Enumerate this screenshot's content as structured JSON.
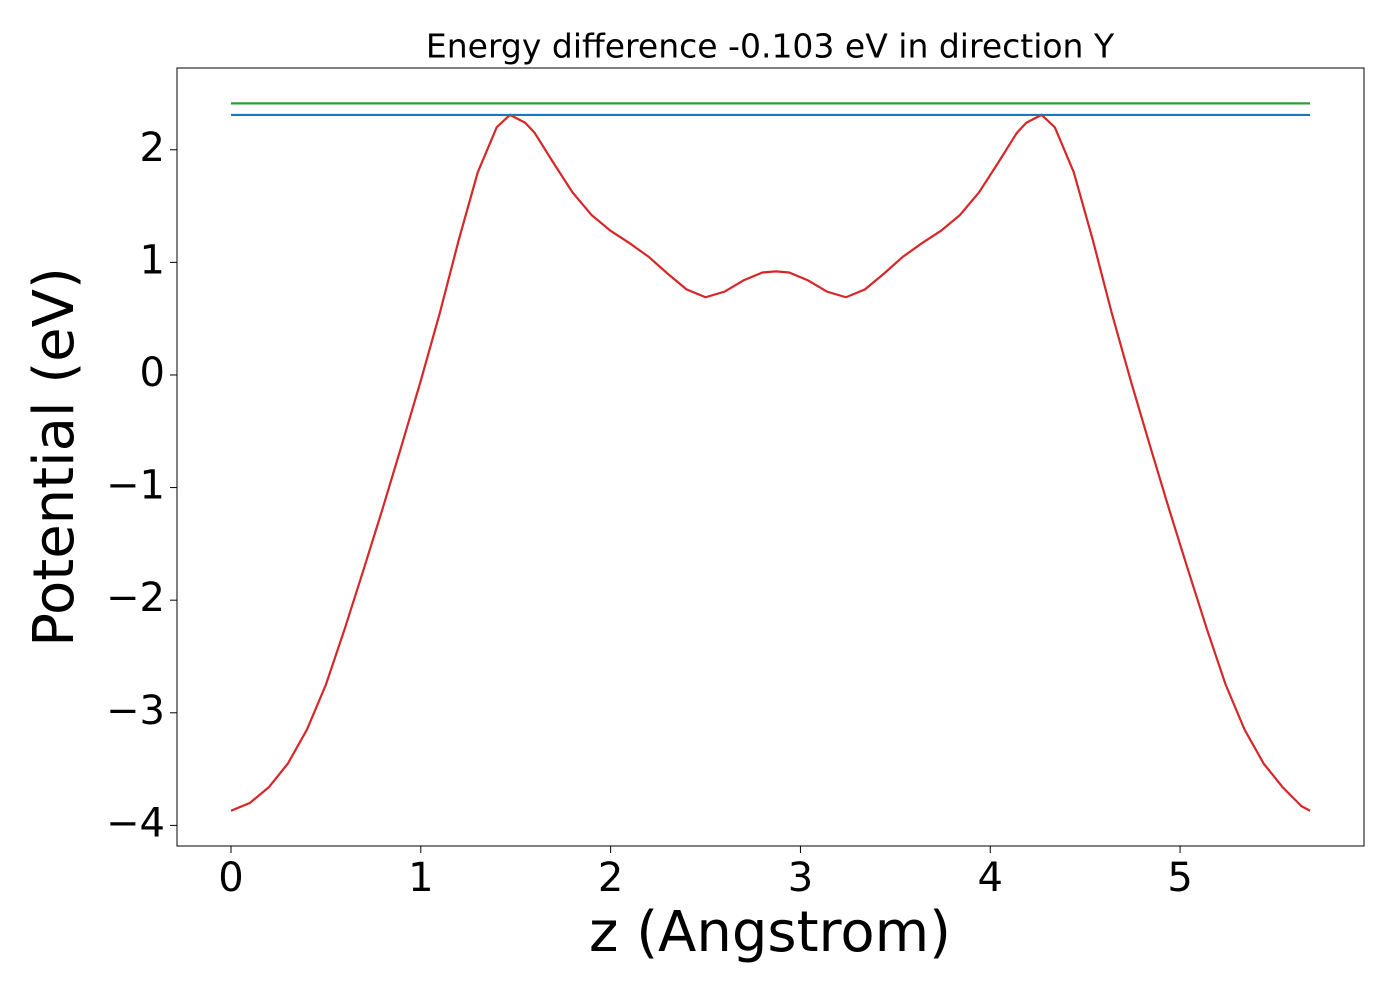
{
  "chart_data": {
    "type": "line",
    "title": "Energy difference -0.103 eV in direction Y",
    "xlabel": "z (Angstrom)",
    "ylabel": "Potential (eV)",
    "xlim": [
      -0.2845,
      5.969
    ],
    "ylim": [
      -4.183,
      2.726
    ],
    "xticks": [
      0,
      1,
      2,
      3,
      4,
      5
    ],
    "yticks": [
      {
        "value": -4,
        "label": "−4"
      },
      {
        "value": -3,
        "label": "−3"
      },
      {
        "value": -2,
        "label": "−2"
      },
      {
        "value": -1,
        "label": "−1"
      },
      0,
      1,
      2
    ],
    "grid": false,
    "series": [
      {
        "color": "#d62728",
        "x": [
          0,
          0.1,
          0.2,
          0.3,
          0.4,
          0.5,
          0.6,
          0.7,
          0.8,
          0.9,
          1.0,
          1.1,
          1.2,
          1.3,
          1.4,
          1.47,
          1.55,
          1.6,
          1.7,
          1.8,
          1.9,
          2.0,
          2.1,
          2.2,
          2.3,
          2.4,
          2.5,
          2.6,
          2.7,
          2.8,
          2.87,
          2.94,
          3.04,
          3.14,
          3.24,
          3.34,
          3.44,
          3.54,
          3.64,
          3.74,
          3.84,
          3.94,
          4.04,
          4.14,
          4.19,
          4.27,
          4.34,
          4.44,
          4.54,
          4.64,
          4.74,
          4.84,
          4.94,
          5.04,
          5.14,
          5.24,
          5.34,
          5.44,
          5.54,
          5.64,
          5.685
        ],
        "values": [
          -3.87,
          -3.8,
          -3.66,
          -3.45,
          -3.15,
          -2.75,
          -2.25,
          -1.72,
          -1.18,
          -0.62,
          -0.05,
          0.55,
          1.2,
          1.8,
          2.2,
          2.31,
          2.24,
          2.15,
          1.88,
          1.62,
          1.42,
          1.28,
          1.17,
          1.05,
          0.9,
          0.76,
          0.69,
          0.74,
          0.84,
          0.91,
          0.92,
          0.91,
          0.84,
          0.74,
          0.69,
          0.76,
          0.9,
          1.05,
          1.17,
          1.28,
          1.42,
          1.62,
          1.88,
          2.15,
          2.24,
          2.31,
          2.2,
          1.8,
          1.2,
          0.55,
          -0.05,
          -0.62,
          -1.18,
          -1.72,
          -2.25,
          -2.75,
          -3.15,
          -3.45,
          -3.66,
          -3.83,
          -3.87
        ]
      },
      {
        "color": "#2ca02c",
        "x": [
          0,
          5.685
        ],
        "values": [
          2.412,
          2.412
        ]
      },
      {
        "color": "#1f77b4",
        "x": [
          0,
          5.685
        ],
        "values": [
          2.309,
          2.309
        ]
      }
    ]
  }
}
